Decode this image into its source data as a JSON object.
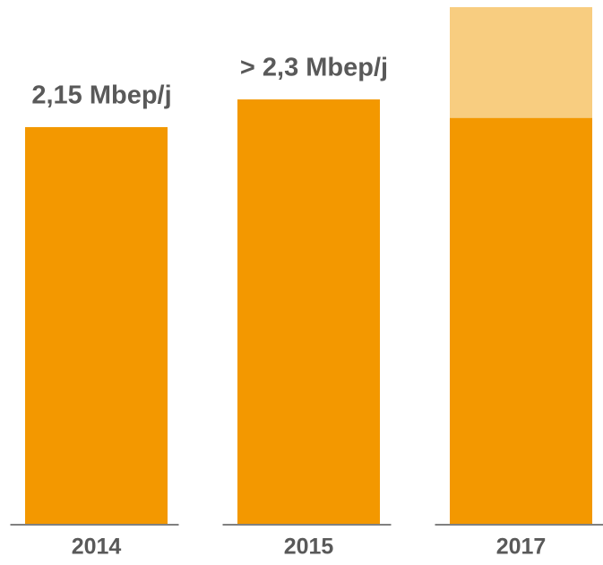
{
  "chart_data": {
    "type": "bar",
    "stacked": true,
    "categories": [
      "2014",
      "2015",
      "2017"
    ],
    "series": [
      {
        "color": "#f39800",
        "values": [
          2.15,
          2.3,
          2.2
        ],
        "value_labels": [
          "2,15 Mbep/j",
          "> 2,3 Mbep/j",
          null
        ]
      },
      {
        "color": "#f8cd80",
        "values": [
          null,
          null,
          0.6
        ]
      }
    ],
    "ylim": [
      0,
      2.8
    ]
  }
}
